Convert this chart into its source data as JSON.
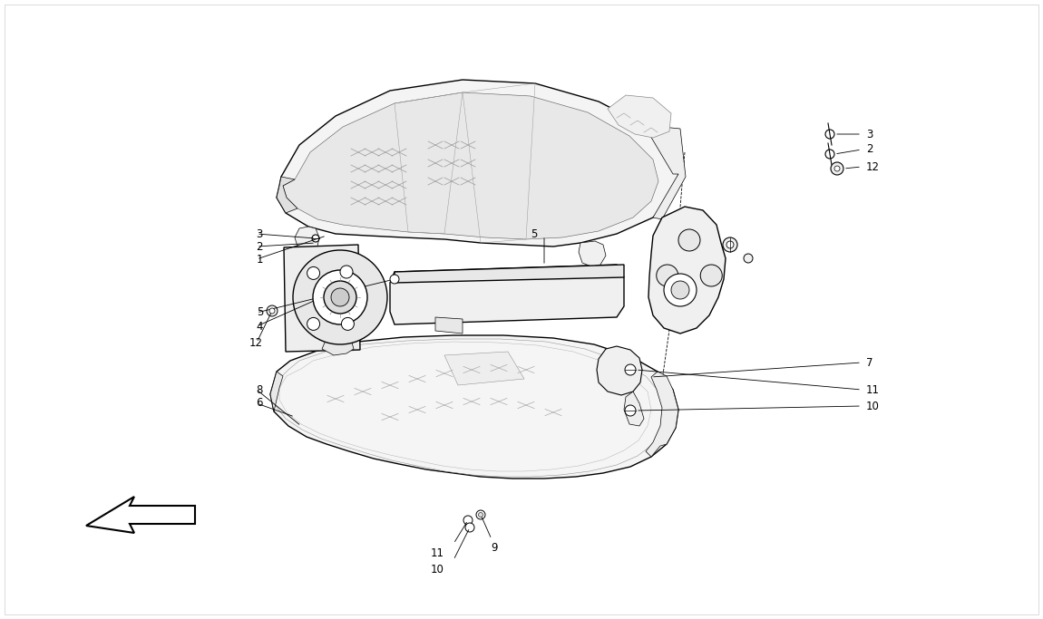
{
  "bg_color": "#ffffff",
  "line_color": "#000000",
  "figsize": [
    11.5,
    6.83
  ],
  "dpi": 100,
  "lw_main": 1.0,
  "lw_thin": 0.5,
  "lw_leader": 0.6,
  "fontsize": 8.5
}
